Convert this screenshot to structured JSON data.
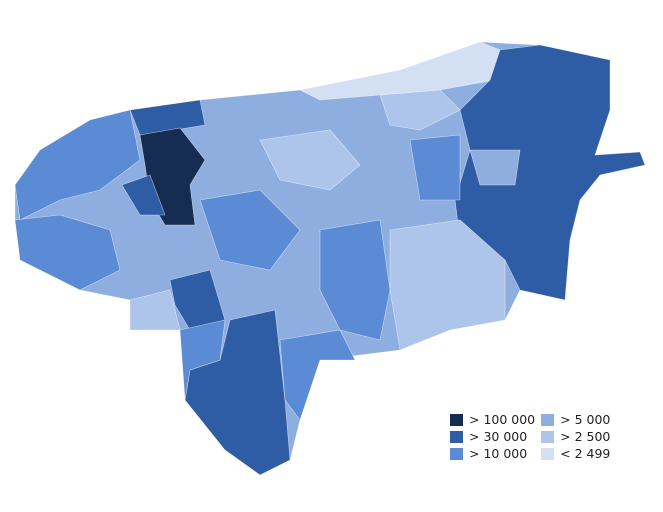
{
  "legend": [
    {
      "label": "> 100 000",
      "color": "#172c52"
    },
    {
      "label": "> 5 000",
      "color": "#8eaee0"
    },
    {
      "label": "> 30 000",
      "color": "#2e5ca5"
    },
    {
      "label": "> 2 500",
      "color": "#adc5ea"
    },
    {
      "label": "> 10 000",
      "color": "#5a8bd4"
    },
    {
      "label": "< 2 499",
      "color": "#d3dff3"
    }
  ]
}
